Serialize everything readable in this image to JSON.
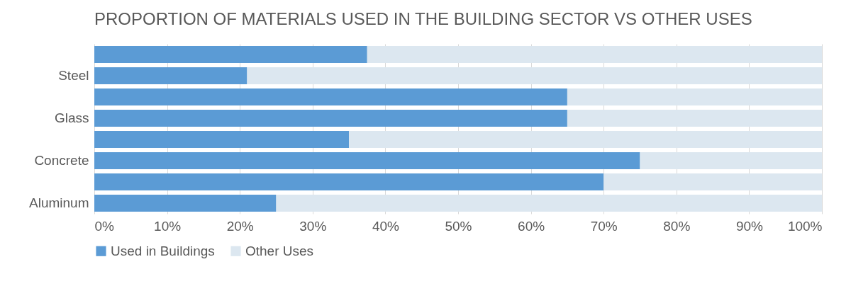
{
  "chart_data": {
    "type": "bar",
    "orientation": "horizontal",
    "stacked": true,
    "title": "PROPORTION OF MATERIALS USED IN THE BUILDING SECTOR VS OTHER USES",
    "categories": [
      null,
      "Steel",
      null,
      "Glass",
      null,
      "Concrete",
      null,
      "Aluminum"
    ],
    "series": [
      {
        "name": "Used in Buildings",
        "color": "#5b9bd5",
        "values": [
          37.5,
          21,
          65,
          65,
          35,
          75,
          70,
          25
        ]
      },
      {
        "name": "Other Uses",
        "color": "#dce7f0",
        "values": [
          62.5,
          79,
          35,
          35,
          65,
          25,
          30,
          75
        ]
      }
    ],
    "xlim": [
      0,
      100
    ],
    "xticks": [
      {
        "value": 0,
        "label": "0%"
      },
      {
        "value": 10,
        "label": "10%"
      },
      {
        "value": 20,
        "label": "20%"
      },
      {
        "value": 30,
        "label": "30%"
      },
      {
        "value": 40,
        "label": "40%"
      },
      {
        "value": 50,
        "label": "50%"
      },
      {
        "value": 60,
        "label": "60%"
      },
      {
        "value": 70,
        "label": "70%"
      },
      {
        "value": 80,
        "label": "80%"
      },
      {
        "value": 90,
        "label": "90%"
      },
      {
        "value": 100,
        "label": "100%"
      }
    ],
    "grid": "x",
    "legend": "bottom"
  }
}
